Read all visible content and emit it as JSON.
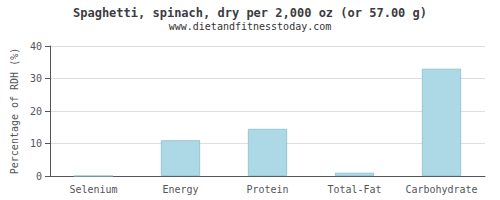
{
  "chart_data": {
    "type": "bar",
    "title": "Spaghetti, spinach, dry per 2,000 oz (or 57.00 g)",
    "subtitle": "www.dietandfitnesstoday.com",
    "categories": [
      "Selenium",
      "Energy",
      "Protein",
      "Total-Fat",
      "Carbohydrate"
    ],
    "values": [
      0.0,
      11.0,
      14.5,
      1.0,
      33.0
    ],
    "color": "#add8e6",
    "ylabel": "Percentage of RDH (%)",
    "ylim": [
      0,
      40
    ],
    "yticks": [
      0,
      10,
      20,
      30,
      40
    ],
    "grid": true
  }
}
